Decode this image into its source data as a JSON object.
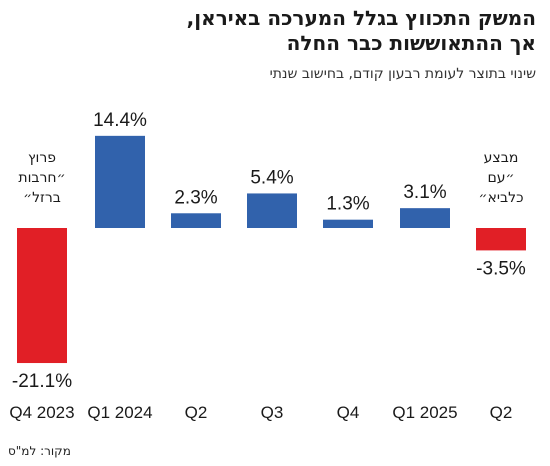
{
  "header": {
    "title_line1": "המשק התכווץ בגלל המערכה באיראן,",
    "title_line2": "אך ההתאוששות כבר החלה",
    "subtitle": "שינוי בתוצר לעומת רבעון קודם, בחישוב שנתי"
  },
  "footer": {
    "source": "מקור: למ\"ס"
  },
  "chart_data": {
    "type": "bar",
    "categories": [
      "Q4 2023",
      "Q1 2024",
      "Q2",
      "Q3",
      "Q4",
      "Q1 2025",
      "Q2"
    ],
    "values": [
      -21.1,
      14.4,
      2.3,
      5.4,
      1.3,
      3.1,
      -3.5
    ],
    "value_labels": [
      "-21.1%",
      "14.4%",
      "2.3%",
      "5.4%",
      "1.3%",
      "3.1%",
      "-3.5%"
    ],
    "annotations": [
      {
        "category_index": 0,
        "lines": [
          "פרוץ",
          "״חרבות",
          "ברזל״"
        ]
      },
      {
        "category_index": 6,
        "lines": [
          "מבצע",
          "״עם",
          "כלביא״"
        ]
      }
    ],
    "colors": {
      "positive": "#3162ac",
      "negative": "#e11f26"
    }
  }
}
